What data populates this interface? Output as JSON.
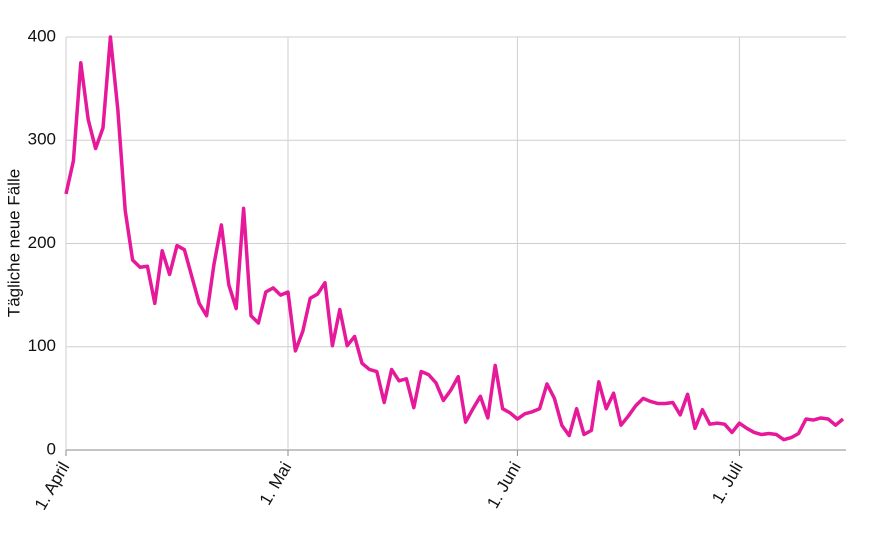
{
  "chart_data": {
    "type": "line",
    "y_label": "Tägliche neue Fälle",
    "categories": [
      "1. April",
      null,
      null,
      null,
      null,
      null,
      null,
      null,
      null,
      null,
      null,
      null,
      null,
      null,
      null,
      null,
      null,
      null,
      null,
      null,
      null,
      null,
      null,
      null,
      null,
      null,
      null,
      null,
      null,
      null,
      "1. Mai",
      null,
      null,
      null,
      null,
      null,
      null,
      null,
      null,
      null,
      null,
      null,
      null,
      null,
      null,
      null,
      null,
      null,
      null,
      null,
      null,
      null,
      null,
      null,
      null,
      null,
      null,
      null,
      null,
      null,
      null,
      "1. Juni",
      null,
      null,
      null,
      null,
      null,
      null,
      null,
      null,
      null,
      null,
      null,
      null,
      null,
      null,
      null,
      null,
      null,
      null,
      null,
      null,
      null,
      null,
      null,
      null,
      null,
      null,
      null,
      null,
      null,
      "1. Juli",
      null,
      null,
      null,
      null,
      null,
      null,
      null,
      null,
      null,
      null,
      null,
      null,
      null,
      null
    ],
    "values": [
      248,
      280,
      375,
      320,
      292,
      312,
      400,
      330,
      232,
      184,
      177,
      178,
      142,
      193,
      170,
      198,
      194,
      168,
      142,
      130,
      180,
      218,
      160,
      137,
      234,
      130,
      123,
      153,
      157,
      150,
      153,
      96,
      115,
      147,
      151,
      162,
      101,
      136,
      101,
      110,
      84,
      78,
      76,
      46,
      78,
      67,
      69,
      41,
      76,
      73,
      65,
      48,
      58,
      71,
      27,
      40,
      52,
      31,
      82,
      40,
      36,
      30,
      35,
      37,
      40,
      64,
      50,
      24,
      14,
      40,
      15,
      19,
      66,
      40,
      55,
      24,
      33,
      43,
      50,
      47,
      45,
      45,
      46,
      34,
      54,
      21,
      39,
      25,
      26,
      25,
      17,
      26,
      21,
      17,
      15,
      16,
      15,
      10,
      12,
      16,
      30,
      29,
      31,
      30,
      24,
      30
    ],
    "color": "#e6199b",
    "ylim": [
      0,
      400
    ],
    "yticks": [
      0,
      100,
      200,
      300,
      400
    ],
    "grid": true
  }
}
